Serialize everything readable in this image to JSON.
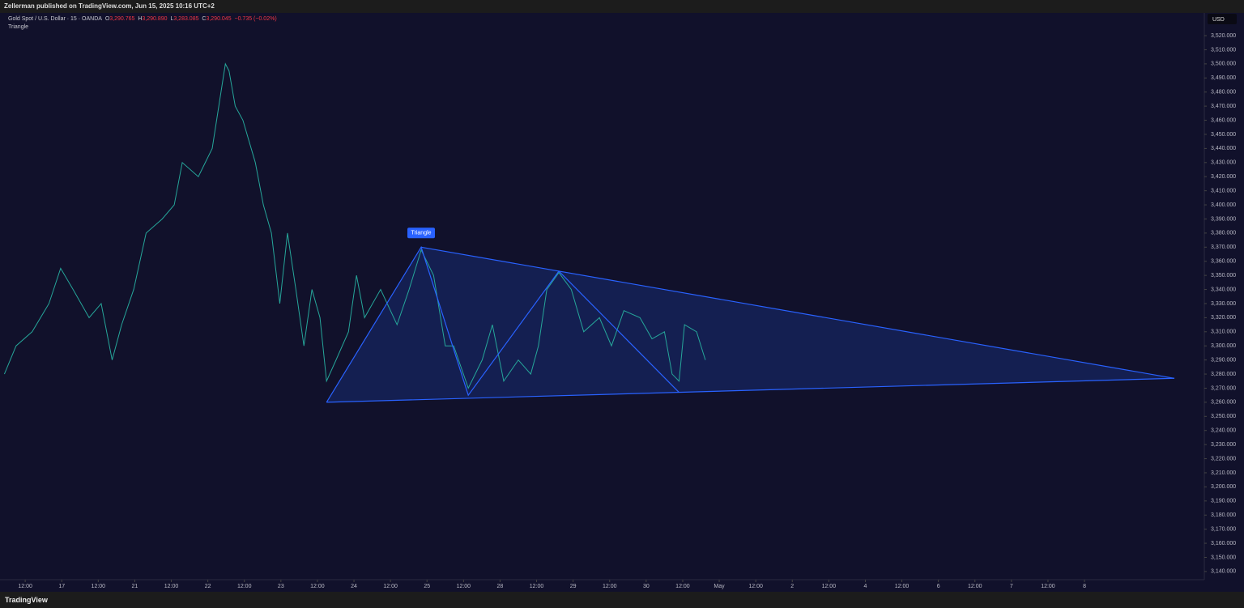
{
  "header": {
    "publisher": "Zellerman published on TradingView.com, Jun 15, 2025 10:16 UTC+2"
  },
  "legend": {
    "symbol": "Gold Spot / U.S. Dollar · 15 · OANDA",
    "open_label": "O",
    "open": "3,290.765",
    "high_label": "H",
    "high": "3,290.890",
    "low_label": "L",
    "low": "3,283.085",
    "close_label": "C",
    "close": "3,290.045",
    "change": "−0.735 (−0.02%)",
    "indicator": "Triangle"
  },
  "footer": {
    "brand": "TradingView"
  },
  "chart_data": {
    "type": "line",
    "currency": "USD",
    "color": "#26a69a",
    "x": [
      -0.57,
      -0.25,
      0.19,
      0.65,
      0.97,
      1.31,
      1.75,
      2.08,
      2.38,
      2.64,
      2.97,
      3.31,
      3.75,
      4.08,
      4.3,
      4.74,
      5.12,
      5.3,
      5.48,
      5.58,
      5.75,
      5.96,
      6.3,
      6.52,
      6.74,
      6.97,
      7.18,
      7.41,
      7.63,
      7.85,
      8.07,
      8.25,
      8.51,
      8.85,
      9.07,
      9.29,
      9.73,
      10.18,
      10.51,
      10.84,
      11.18,
      11.5,
      11.73,
      12.13,
      12.51,
      12.79,
      13.1,
      13.5,
      13.84,
      14.05,
      14.28,
      14.61,
      14.95,
      15.29,
      15.72,
      16.05,
      16.39,
      16.83,
      17.16,
      17.5,
      17.71,
      17.9,
      18.05,
      18.38,
      18.62
    ],
    "values": [
      3280,
      3300,
      3310,
      3330,
      3355,
      3340,
      3320,
      3330,
      3290,
      3315,
      3340,
      3380,
      3390,
      3400,
      3430,
      3420,
      3440,
      3470,
      3500,
      3495,
      3470,
      3460,
      3430,
      3400,
      3380,
      3330,
      3380,
      3340,
      3300,
      3340,
      3320,
      3275,
      3290,
      3310,
      3350,
      3320,
      3340,
      3315,
      3340,
      3368,
      3350,
      3300,
      3300,
      3270,
      3290,
      3315,
      3275,
      3290,
      3280,
      3300,
      3340,
      3352,
      3340,
      3310,
      3320,
      3300,
      3325,
      3320,
      3305,
      3310,
      3280,
      3275,
      3315,
      3310,
      3290
    ],
    "pattern": {
      "label": "Triangle",
      "color": "#2962ff",
      "x": [
        8.25,
        10.84,
        12.13,
        14.61,
        17.9
      ],
      "y": [
        3260,
        3370,
        3265,
        3353,
        3267
      ],
      "apex_x": 31.46,
      "apex_y": 3277
    },
    "xlim": [
      -0.69,
      32.28
    ],
    "ylim": [
      3134.2,
      3536.1
    ],
    "xticks": [
      {
        "value": 0,
        "label": "12:00"
      },
      {
        "value": 1,
        "label": "17"
      },
      {
        "value": 2,
        "label": "12:00"
      },
      {
        "value": 3,
        "label": "21"
      },
      {
        "value": 4,
        "label": "12:00"
      },
      {
        "value": 5,
        "label": "22"
      },
      {
        "value": 6,
        "label": "12:00"
      },
      {
        "value": 7,
        "label": "23"
      },
      {
        "value": 8,
        "label": "12:00"
      },
      {
        "value": 9,
        "label": "24"
      },
      {
        "value": 10,
        "label": "12:00"
      },
      {
        "value": 11,
        "label": "25"
      },
      {
        "value": 12,
        "label": "12:00"
      },
      {
        "value": 13,
        "label": "28"
      },
      {
        "value": 14,
        "label": "12:00"
      },
      {
        "value": 15,
        "label": "29"
      },
      {
        "value": 16,
        "label": "12:00"
      },
      {
        "value": 17,
        "label": "30"
      },
      {
        "value": 18,
        "label": "12:00"
      },
      {
        "value": 19,
        "label": "May"
      },
      {
        "value": 20,
        "label": "12:00"
      },
      {
        "value": 21,
        "label": "2"
      },
      {
        "value": 22,
        "label": "12:00"
      },
      {
        "value": 23,
        "label": "4"
      },
      {
        "value": 24,
        "label": "12:00"
      },
      {
        "value": 25,
        "label": "6"
      },
      {
        "value": 26,
        "label": "12:00"
      },
      {
        "value": 27,
        "label": "7"
      },
      {
        "value": 28,
        "label": "12:00"
      },
      {
        "value": 29,
        "label": "8"
      }
    ],
    "yticks": [
      {
        "value": 3140,
        "label": "3,140.000"
      },
      {
        "value": 3150,
        "label": "3,150.000"
      },
      {
        "value": 3160,
        "label": "3,160.000"
      },
      {
        "value": 3170,
        "label": "3,170.000"
      },
      {
        "value": 3180,
        "label": "3,180.000"
      },
      {
        "value": 3190,
        "label": "3,190.000"
      },
      {
        "value": 3200,
        "label": "3,200.000"
      },
      {
        "value": 3210,
        "label": "3,210.000"
      },
      {
        "value": 3220,
        "label": "3,220.000"
      },
      {
        "value": 3230,
        "label": "3,230.000"
      },
      {
        "value": 3240,
        "label": "3,240.000"
      },
      {
        "value": 3250,
        "label": "3,250.000"
      },
      {
        "value": 3260,
        "label": "3,260.000"
      },
      {
        "value": 3270,
        "label": "3,270.000"
      },
      {
        "value": 3280,
        "label": "3,280.000"
      },
      {
        "value": 3290,
        "label": "3,290.000"
      },
      {
        "value": 3300,
        "label": "3,300.000"
      },
      {
        "value": 3310,
        "label": "3,310.000"
      },
      {
        "value": 3320,
        "label": "3,320.000"
      },
      {
        "value": 3330,
        "label": "3,330.000"
      },
      {
        "value": 3340,
        "label": "3,340.000"
      },
      {
        "value": 3350,
        "label": "3,350.000"
      },
      {
        "value": 3360,
        "label": "3,360.000"
      },
      {
        "value": 3370,
        "label": "3,370.000"
      },
      {
        "value": 3380,
        "label": "3,380.000"
      },
      {
        "value": 3390,
        "label": "3,390.000"
      },
      {
        "value": 3400,
        "label": "3,400.000"
      },
      {
        "value": 3410,
        "label": "3,410.000"
      },
      {
        "value": 3420,
        "label": "3,420.000"
      },
      {
        "value": 3430,
        "label": "3,430.000"
      },
      {
        "value": 3440,
        "label": "3,440.000"
      },
      {
        "value": 3450,
        "label": "3,450.000"
      },
      {
        "value": 3460,
        "label": "3,460.000"
      },
      {
        "value": 3470,
        "label": "3,470.000"
      },
      {
        "value": 3480,
        "label": "3,480.000"
      },
      {
        "value": 3490,
        "label": "3,490.000"
      },
      {
        "value": 3500,
        "label": "3,500.000"
      },
      {
        "value": 3510,
        "label": "3,510.000"
      },
      {
        "value": 3520,
        "label": "3,520.000"
      }
    ]
  }
}
